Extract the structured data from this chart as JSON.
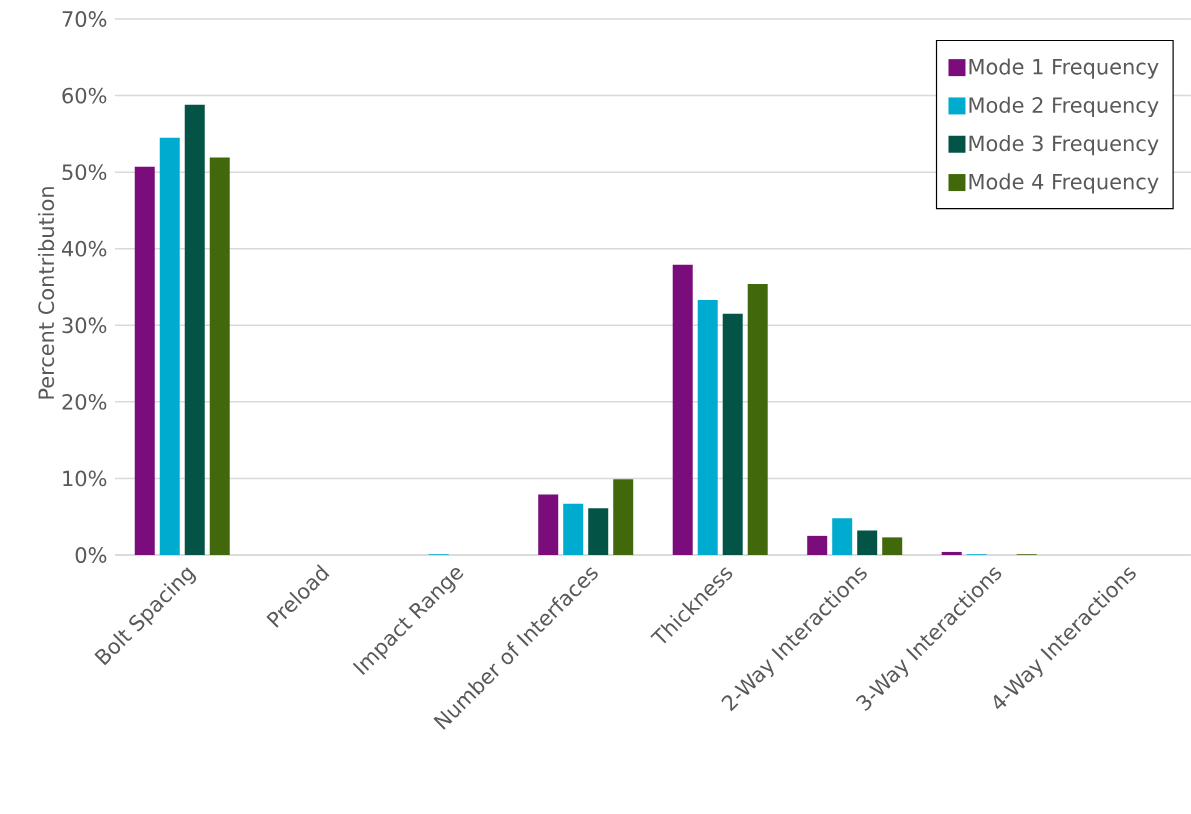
{
  "chart_data": {
    "type": "bar",
    "ylabel": "Percent Contribution",
    "categories": [
      "Bolt Spacing",
      "Preload",
      "Impact Range",
      "Number of Interfaces",
      "Thickness",
      "2-Way Interactions",
      "3-Way Interactions",
      "4-Way Interactions"
    ],
    "series": [
      {
        "name": "Mode 1 Frequency",
        "color": "#7b0c7b",
        "values": [
          50.7,
          0,
          0,
          7.9,
          37.9,
          2.5,
          0.4,
          0
        ]
      },
      {
        "name": "Mode 2 Frequency",
        "color": "#00abd0",
        "values": [
          54.5,
          0,
          0.1,
          6.7,
          33.3,
          4.8,
          0.1,
          0
        ]
      },
      {
        "name": "Mode 3 Frequency",
        "color": "#035446",
        "values": [
          58.8,
          0,
          0,
          6.1,
          31.5,
          3.2,
          0,
          0
        ]
      },
      {
        "name": "Mode 4 Frequency",
        "color": "#41690c",
        "values": [
          51.9,
          0,
          0,
          9.9,
          35.4,
          2.3,
          0.1,
          0
        ]
      }
    ],
    "ylim": [
      0,
      70
    ],
    "yticks": [
      {
        "value": 0,
        "label": "0%"
      },
      {
        "value": 10,
        "label": "10%"
      },
      {
        "value": 20,
        "label": "20%"
      },
      {
        "value": 30,
        "label": "30%"
      },
      {
        "value": 40,
        "label": "40%"
      },
      {
        "value": 50,
        "label": "50%"
      },
      {
        "value": 60,
        "label": "60%"
      },
      {
        "value": 70,
        "label": "70%"
      }
    ],
    "grid": "y",
    "legend": "top right"
  }
}
